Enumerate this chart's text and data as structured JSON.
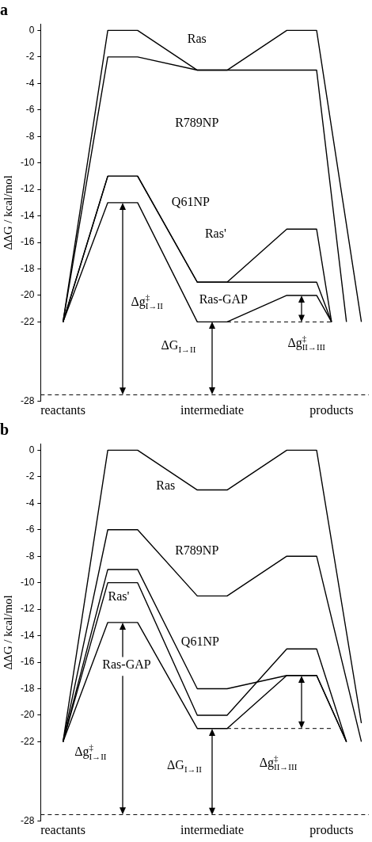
{
  "chart_data": [
    {
      "type": "line",
      "title": "a",
      "ylabel": "ΔΔG / kcal/mol",
      "categories": [
        null,
        "reactants",
        null,
        null,
        null,
        null,
        null,
        null,
        null,
        null,
        null,
        "intermediate",
        null,
        null,
        null,
        null,
        null,
        null,
        null,
        "products",
        null,
        null
      ],
      "ylim": [
        -28,
        0.5
      ],
      "yticks": [
        0,
        -2,
        -4,
        -6,
        -8,
        -10,
        -12,
        -14,
        -16,
        -18,
        -20,
        -22,
        -28
      ],
      "grid": false,
      "marker": "none",
      "series": [
        {
          "color": "#000000",
          "values": [
            null,
            -22,
            null,
            null,
            0,
            null,
            0,
            null,
            null,
            null,
            -3,
            null,
            -3,
            null,
            null,
            null,
            0,
            null,
            0,
            null,
            null,
            -22
          ]
        },
        {
          "color": "#000000",
          "values": [
            null,
            -22,
            null,
            null,
            -2,
            null,
            -2,
            null,
            null,
            null,
            -3,
            null,
            -3,
            null,
            null,
            null,
            -3,
            null,
            -3,
            null,
            -22,
            null
          ]
        },
        {
          "color": "#000000",
          "values": [
            null,
            -22,
            null,
            null,
            -11,
            null,
            -11,
            null,
            null,
            null,
            -19,
            null,
            -19,
            null,
            null,
            null,
            -15,
            null,
            -15,
            -22,
            null,
            null
          ]
        },
        {
          "color": "#000000",
          "values": [
            null,
            -22,
            null,
            null,
            -11,
            null,
            -11,
            null,
            null,
            null,
            -19,
            null,
            -19,
            null,
            null,
            null,
            -19,
            null,
            -19,
            -22,
            null,
            null
          ]
        },
        {
          "color": "#000000",
          "values": [
            null,
            -22,
            null,
            null,
            -13,
            null,
            -13,
            null,
            null,
            null,
            -22,
            null,
            -22,
            null,
            null,
            null,
            -20,
            null,
            -20,
            -22,
            null,
            null
          ]
        },
        {
          "color": "#000000",
          "line_style": "dashed",
          "values": [
            null,
            null,
            null,
            null,
            null,
            null,
            null,
            null,
            null,
            null,
            null,
            null,
            -22,
            null,
            null,
            null,
            null,
            null,
            null,
            -22,
            null,
            null
          ]
        }
      ],
      "ref_lines": [
        {
          "axis": "y",
          "value": -27.5,
          "line_style": "dashed"
        }
      ],
      "annotations": [
        "Ras",
        "R789NP",
        "Q61NP",
        "Ras'",
        {
          "text": "Ras-GAP",
          "y": -22
        },
        "Δg$^{‡}$$_{I→II}$",
        "ΔG$_{I→II}$",
        "Δg$^{‡}$$_{II→III}$"
      ]
    },
    {
      "type": "line",
      "title": "b",
      "ylabel": "ΔΔG / kcal/mol",
      "categories": [
        null,
        "reactants",
        null,
        null,
        null,
        null,
        null,
        null,
        null,
        null,
        null,
        "intermediate",
        null,
        null,
        null,
        null,
        null,
        null,
        null,
        "products",
        null,
        null
      ],
      "ylim": [
        -28,
        0.5
      ],
      "yticks": [
        0,
        -2,
        -4,
        -6,
        -8,
        -10,
        -12,
        -14,
        -16,
        -18,
        -20,
        -22,
        -28
      ],
      "grid": false,
      "marker": "none",
      "series": [
        {
          "color": "#000000",
          "values": [
            null,
            -22,
            null,
            null,
            0,
            null,
            0,
            null,
            null,
            null,
            -3,
            null,
            -3,
            null,
            null,
            null,
            0,
            null,
            0,
            null,
            null,
            -20.6
          ]
        },
        {
          "color": "#000000",
          "values": [
            null,
            -22,
            null,
            null,
            -6,
            null,
            -6,
            null,
            null,
            null,
            -11,
            null,
            -11,
            null,
            null,
            null,
            -8,
            null,
            -8,
            null,
            null,
            -22
          ]
        },
        {
          "color": "#000000",
          "values": [
            null,
            -22,
            null,
            null,
            -9,
            null,
            -9,
            null,
            null,
            null,
            -18,
            null,
            -18,
            null,
            null,
            null,
            -17,
            null,
            -17,
            null,
            -22,
            null
          ]
        },
        {
          "color": "#000000",
          "values": [
            null,
            -22,
            null,
            null,
            -10,
            null,
            -10,
            null,
            null,
            null,
            -20,
            null,
            -20,
            null,
            null,
            null,
            -15,
            null,
            -15,
            null,
            -22,
            null
          ]
        },
        {
          "color": "#000000",
          "values": [
            null,
            -22,
            null,
            null,
            -13,
            null,
            -13,
            null,
            null,
            null,
            -21,
            null,
            -21,
            null,
            null,
            null,
            -17,
            null,
            -17,
            null,
            -22,
            null
          ]
        },
        {
          "color": "#000000",
          "line_style": "dashed",
          "values": [
            null,
            null,
            null,
            null,
            null,
            null,
            null,
            null,
            null,
            null,
            null,
            null,
            -21,
            null,
            null,
            null,
            null,
            null,
            null,
            -21,
            null,
            null
          ]
        }
      ],
      "ref_lines": [
        {
          "axis": "y",
          "value": -27.5,
          "line_style": "dashed"
        }
      ],
      "annotations": [
        "Ras",
        "R789NP",
        "Ras'",
        "Q61NP",
        {
          "text": "Ras-GAP",
          "y": -13
        },
        "Δg$^{‡}$$_{I→II}$",
        "ΔG$_{I→II}$",
        "Δg$^{‡}$$_{II→III}$"
      ]
    }
  ]
}
